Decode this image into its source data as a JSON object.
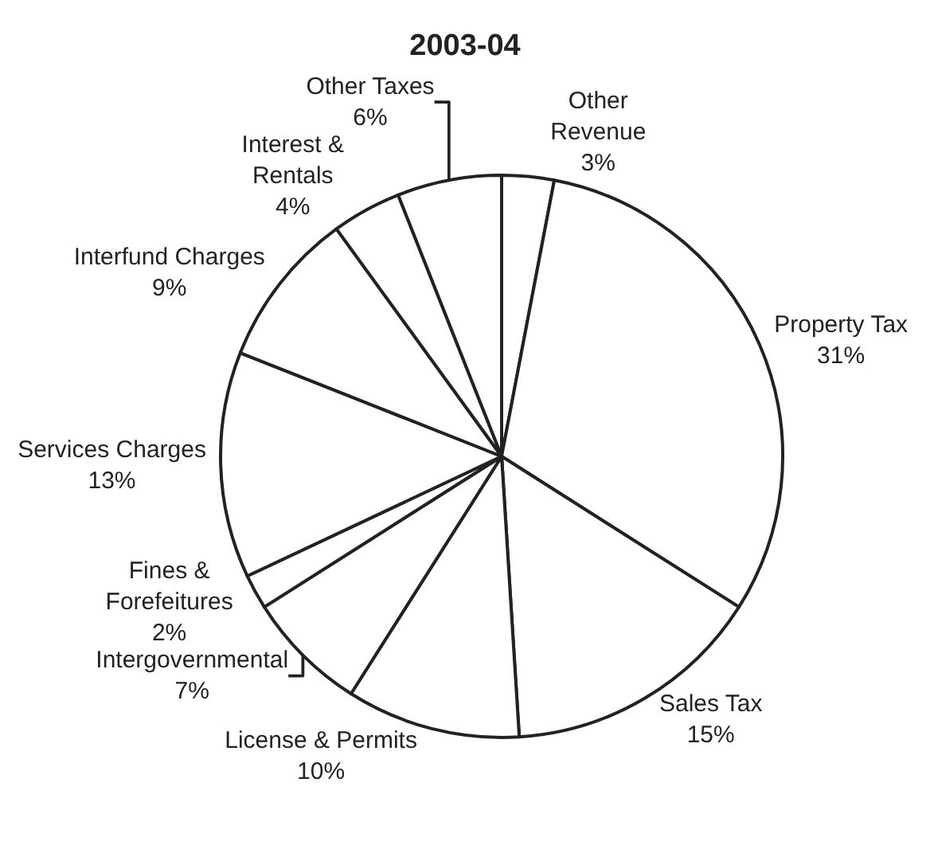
{
  "chart_data": {
    "type": "pie",
    "title": "2003-04",
    "categories": [
      "Other\nRevenue",
      "Property Tax",
      "Sales Tax",
      "License & Permits",
      "Intergovernmental",
      "Fines &\nForefeitures",
      "Services Charges",
      "Interfund Charges",
      "Interest &\nRentals",
      "Other Taxes"
    ],
    "values": [
      3,
      31,
      15,
      10,
      7,
      2,
      13,
      9,
      4,
      6
    ],
    "value_labels": [
      "3%",
      "31%",
      "15%",
      "10%",
      "7%",
      "2%",
      "13%",
      "9%",
      "4%",
      "6%"
    ],
    "colors": [
      "#ffffff",
      "#ffffff",
      "#ffffff",
      "#ffffff",
      "#ffffff",
      "#ffffff",
      "#ffffff",
      "#ffffff",
      "#ffffff",
      "#ffffff"
    ],
    "legend": false
  }
}
